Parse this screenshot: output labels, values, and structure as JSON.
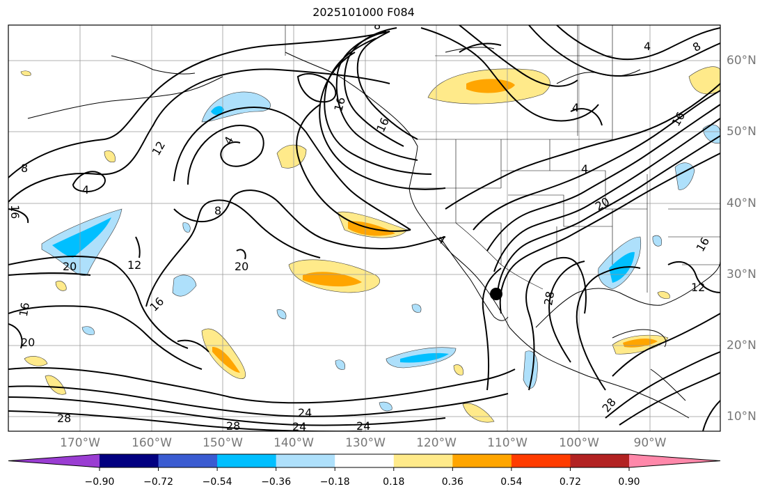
{
  "title": "2025101000 F084",
  "lat_labels": [
    "60°N",
    "50°N",
    "40°N",
    "30°N",
    "20°N",
    "10°N"
  ],
  "lon_labels": [
    "170°W",
    "160°W",
    "150°W",
    "140°W",
    "130°W",
    "120°W",
    "110°W",
    "100°W",
    "90°W"
  ],
  "contour_labels": [
    "4",
    "8",
    "8",
    "16",
    "12",
    "4",
    "8",
    "16",
    "16",
    "20",
    "12",
    "20",
    "16",
    "16",
    "20",
    "28",
    "24",
    "24",
    "24",
    "28",
    "28",
    "4",
    "4",
    "4",
    "20",
    "16",
    "28",
    "12",
    "16",
    "4",
    "8"
  ],
  "colorbar": {
    "ticks": [
      "−0.90",
      "−0.72",
      "−0.54",
      "−0.36",
      "−0.18",
      "0.18",
      "0.36",
      "0.54",
      "0.72",
      "0.90"
    ],
    "colors": [
      "#9a3dd2",
      "#020080",
      "#3a5bd1",
      "#00bfff",
      "#aee0fb",
      "#ffffff",
      "#ffea8a",
      "#ffa500",
      "#ff3c00",
      "#b22222",
      "#ff88aa"
    ]
  }
}
